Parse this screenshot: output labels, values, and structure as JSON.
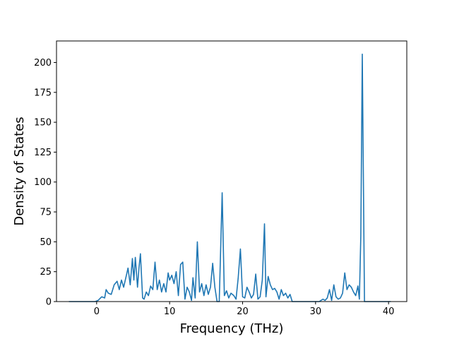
{
  "chart_data": {
    "type": "line",
    "title": "",
    "xlabel": "Frequency (THz)",
    "ylabel": "Density of States",
    "xlim": [
      -5.5,
      42.5
    ],
    "ylim": [
      0,
      218
    ],
    "xticks": [
      0,
      10,
      20,
      30,
      40
    ],
    "xtick_labels": [
      "0",
      "10",
      "20",
      "30",
      "40"
    ],
    "yticks": [
      0,
      25,
      50,
      75,
      100,
      125,
      150,
      175,
      200
    ],
    "ytick_labels": [
      "0",
      "25",
      "50",
      "75",
      "100",
      "125",
      "150",
      "175",
      "200"
    ],
    "grid": false,
    "legend": "none",
    "series": [
      {
        "color": "#1f77b4",
        "x": [
          -3.8,
          -0.2,
          0.2,
          0.7,
          1.1,
          1.3,
          1.6,
          2.0,
          2.4,
          2.8,
          3.1,
          3.4,
          3.7,
          4.0,
          4.3,
          4.6,
          4.9,
          5.1,
          5.3,
          5.6,
          5.8,
          6.0,
          6.3,
          6.5,
          6.8,
          7.1,
          7.4,
          7.7,
          8.0,
          8.3,
          8.6,
          8.9,
          9.2,
          9.5,
          9.8,
          10.0,
          10.3,
          10.6,
          10.9,
          11.2,
          11.5,
          11.8,
          12.1,
          12.4,
          12.7,
          13.0,
          13.2,
          13.5,
          13.8,
          14.1,
          14.4,
          14.7,
          15.0,
          15.3,
          15.6,
          15.9,
          16.2,
          16.5,
          16.8,
          17.2,
          17.5,
          17.8,
          18.1,
          18.4,
          18.8,
          19.1,
          19.4,
          19.7,
          20.0,
          20.3,
          20.6,
          20.9,
          21.2,
          21.5,
          21.8,
          22.1,
          22.4,
          22.7,
          23.0,
          23.2,
          23.5,
          23.8,
          24.1,
          24.4,
          24.7,
          25.0,
          25.3,
          25.6,
          25.9,
          26.2,
          26.5,
          26.8,
          27.2,
          30.5,
          31.0,
          31.3,
          31.6,
          31.9,
          32.2,
          32.5,
          32.8,
          33.1,
          33.4,
          33.7,
          34.0,
          34.3,
          34.6,
          34.9,
          35.2,
          35.5,
          35.8,
          36.0,
          36.2,
          36.4,
          36.7,
          36.9,
          37.2,
          40.3
        ],
        "y": [
          0,
          0,
          1,
          4,
          3,
          10,
          7,
          6,
          14,
          17,
          10,
          18,
          12,
          20,
          28,
          14,
          36,
          18,
          37,
          12,
          28,
          40,
          3,
          2,
          8,
          5,
          13,
          10,
          33,
          10,
          18,
          8,
          15,
          8,
          24,
          18,
          22,
          15,
          25,
          5,
          31,
          33,
          2,
          12,
          8,
          1,
          20,
          3,
          50,
          8,
          15,
          5,
          14,
          6,
          12,
          32,
          12,
          0,
          0,
          91,
          5,
          9,
          3,
          7,
          5,
          2,
          20,
          44,
          4,
          3,
          12,
          8,
          3,
          6,
          23,
          2,
          4,
          18,
          65,
          4,
          21,
          14,
          10,
          11,
          8,
          2,
          10,
          5,
          7,
          3,
          6,
          0,
          0,
          0,
          2,
          1,
          3,
          10,
          1,
          14,
          4,
          2,
          3,
          7,
          24,
          10,
          14,
          12,
          8,
          5,
          13,
          2,
          55,
          207,
          0,
          0,
          0,
          0
        ]
      }
    ]
  }
}
